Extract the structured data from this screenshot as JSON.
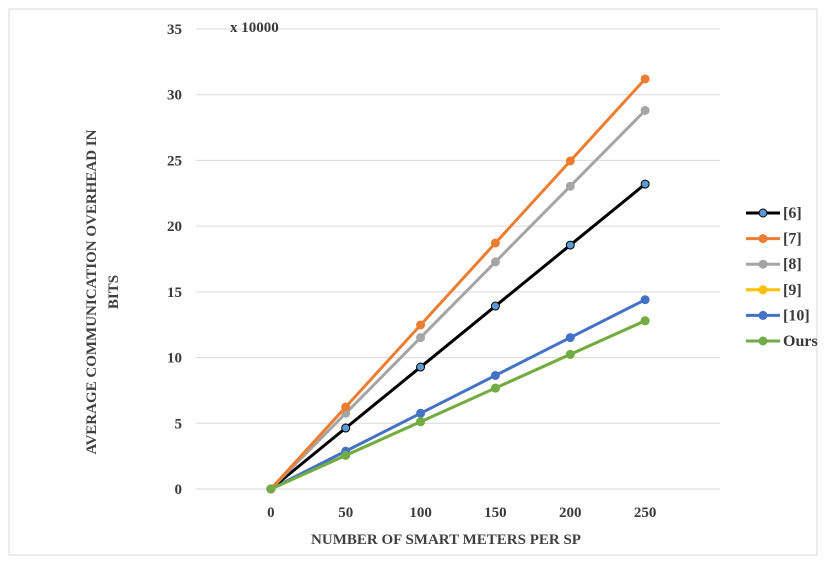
{
  "chart_data": {
    "type": "line",
    "title": "",
    "scale_note": "x 10000",
    "xlabel": "NUMBER OF SMART METERS PER SP",
    "ylabel_lines": [
      "AVERAGE COMMUNICATION OVERHEAD IN",
      "BITS"
    ],
    "x": [
      0,
      50,
      100,
      150,
      200,
      250
    ],
    "xlim": [
      -50,
      300
    ],
    "ylim": [
      0,
      35
    ],
    "yticks": [
      0,
      5,
      10,
      15,
      20,
      25,
      30,
      35
    ],
    "grid": true,
    "legend_position": "right",
    "series": [
      {
        "name": "[6]",
        "color": "#000000",
        "marker_fill": "#5b9bd5",
        "values": [
          0,
          4.64,
          9.28,
          13.92,
          18.56,
          23.2
        ]
      },
      {
        "name": "[7]",
        "color": "#ed7d31",
        "marker_fill": "#ed7d31",
        "values": [
          0,
          6.24,
          12.48,
          18.72,
          24.96,
          31.2
        ]
      },
      {
        "name": "[8]",
        "color": "#a5a5a5",
        "marker_fill": "#a5a5a5",
        "values": [
          0,
          5.76,
          11.52,
          17.28,
          23.04,
          28.8
        ]
      },
      {
        "name": "[9]",
        "color": "#ffc000",
        "marker_fill": "#ffc000",
        "values": [
          0,
          2.56,
          5.12,
          7.68,
          10.24,
          12.8
        ]
      },
      {
        "name": "[10]",
        "color": "#4472c4",
        "marker_fill": "#4472c4",
        "values": [
          0,
          2.88,
          5.76,
          8.64,
          11.52,
          14.4
        ]
      },
      {
        "name": "Ours",
        "color": "#70ad47",
        "marker_fill": "#70ad47",
        "values": [
          0,
          2.56,
          5.12,
          7.68,
          10.24,
          12.8
        ]
      }
    ]
  }
}
